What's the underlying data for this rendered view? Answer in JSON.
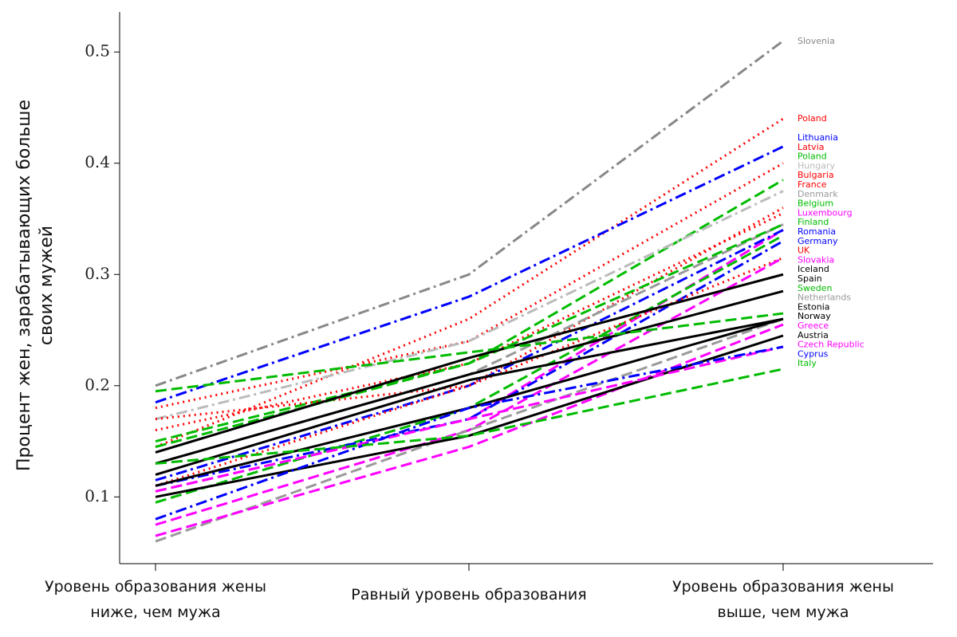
{
  "chart_data": {
    "type": "line",
    "ylabel": "Процент жен, зарабатывающих больше\nсвоих мужей",
    "categories": [
      "Уровень образования жены\nниже, чем мужа",
      "Равный уровень образования",
      "Уровень образования жены\nвыше, чем мужа"
    ],
    "ylim": [
      0.04,
      0.536
    ],
    "yticks": [
      0.1,
      0.2,
      0.3,
      0.4,
      0.5
    ],
    "series": [
      {
        "name": "Slovenia",
        "color": "#888888",
        "dash": "dashdot",
        "values": [
          0.2,
          0.3,
          0.51
        ]
      },
      {
        "name": "Poland",
        "color": "#ff0000",
        "dash": "dotted",
        "values": [
          0.145,
          0.26,
          0.44
        ]
      },
      {
        "name": "Lithuania",
        "color": "#0000ff",
        "dash": "dashdot",
        "values": [
          0.185,
          0.28,
          0.415
        ]
      },
      {
        "name": "Latvia",
        "color": "#ff0000",
        "dash": "dotted",
        "values": [
          0.18,
          0.24,
          0.4
        ]
      },
      {
        "name": "Poland",
        "color": "#00bb00",
        "dash": "dashed",
        "values": [
          0.15,
          0.22,
          0.385
        ]
      },
      {
        "name": "Hungary",
        "color": "#bbbbbb",
        "dash": "dashdot",
        "values": [
          0.17,
          0.24,
          0.375
        ]
      },
      {
        "name": "Bulgaria",
        "color": "#ff0000",
        "dash": "dotted",
        "values": [
          0.17,
          0.2,
          0.36
        ]
      },
      {
        "name": "France",
        "color": "#ff0000",
        "dash": "dotted",
        "values": [
          0.16,
          0.22,
          0.355
        ]
      },
      {
        "name": "Denmark",
        "color": "#999999",
        "dash": "dashed",
        "values": [
          0.13,
          0.21,
          0.345
        ]
      },
      {
        "name": "Belgium",
        "color": "#00bb00",
        "dash": "dashed",
        "values": [
          0.145,
          0.22,
          0.345
        ]
      },
      {
        "name": "Luxembourg",
        "color": "#ff00ff",
        "dash": "dashed",
        "values": [
          0.105,
          0.17,
          0.34
        ]
      },
      {
        "name": "Finland",
        "color": "#00bb00",
        "dash": "dashed",
        "values": [
          0.095,
          0.18,
          0.335
        ]
      },
      {
        "name": "Romania",
        "color": "#0000ff",
        "dash": "dashdot",
        "values": [
          0.115,
          0.2,
          0.34
        ]
      },
      {
        "name": "Germany",
        "color": "#0000ff",
        "dash": "dashdot",
        "values": [
          0.11,
          0.17,
          0.33
        ]
      },
      {
        "name": "UK",
        "color": "#ff0000",
        "dash": "dotted",
        "values": [
          0.11,
          0.2,
          0.315
        ]
      },
      {
        "name": "Slovakia",
        "color": "#ff00ff",
        "dash": "dashed",
        "values": [
          0.075,
          0.16,
          0.315
        ]
      },
      {
        "name": "Iceland",
        "color": "#000000",
        "dash": "solid",
        "values": [
          0.14,
          0.225,
          0.3
        ]
      },
      {
        "name": "Spain",
        "color": "#000000",
        "dash": "solid",
        "values": [
          0.13,
          0.21,
          0.285
        ]
      },
      {
        "name": "Sweden",
        "color": "#00bb00",
        "dash": "dashed",
        "values": [
          0.195,
          0.23,
          0.265
        ]
      },
      {
        "name": "Netherlands",
        "color": "#999999",
        "dash": "dashed",
        "values": [
          0.06,
          0.16,
          0.26
        ]
      },
      {
        "name": "Estonia",
        "color": "#000000",
        "dash": "solid",
        "values": [
          0.12,
          0.205,
          0.26
        ]
      },
      {
        "name": "Norway",
        "color": "#000000",
        "dash": "solid",
        "values": [
          0.11,
          0.18,
          0.26
        ]
      },
      {
        "name": "Greece",
        "color": "#ff00ff",
        "dash": "dashed",
        "values": [
          0.065,
          0.145,
          0.255
        ]
      },
      {
        "name": "Austria",
        "color": "#000000",
        "dash": "solid",
        "values": [
          0.1,
          0.155,
          0.245
        ]
      },
      {
        "name": "Czech Republic",
        "color": "#ff00ff",
        "dash": "dashed",
        "values": [
          0.105,
          0.17,
          0.235
        ]
      },
      {
        "name": "Cyprus",
        "color": "#0000ff",
        "dash": "dashdot",
        "values": [
          0.08,
          0.18,
          0.235
        ]
      },
      {
        "name": "Italy",
        "color": "#00bb00",
        "dash": "dashed",
        "values": [
          0.13,
          0.155,
          0.215
        ]
      }
    ]
  }
}
